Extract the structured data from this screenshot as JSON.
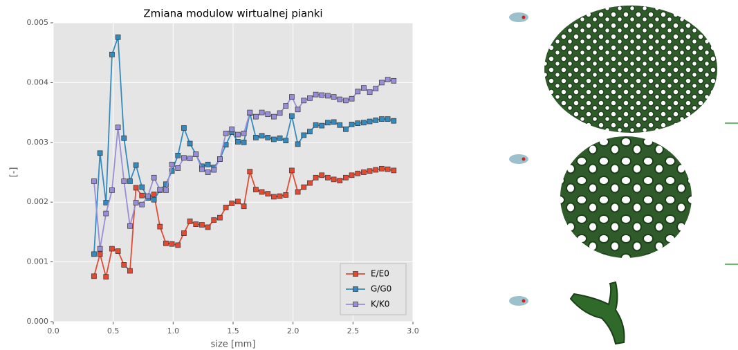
{
  "chart_data": {
    "type": "line",
    "title": "Zmiana modulow wirtualnej pianki",
    "xlabel": "size [mm]",
    "ylabel": "[-]",
    "x": [
      0.34,
      0.39,
      0.44,
      0.49,
      0.54,
      0.59,
      0.64,
      0.69,
      0.74,
      0.79,
      0.84,
      0.89,
      0.94,
      0.99,
      1.04,
      1.09,
      1.14,
      1.19,
      1.24,
      1.29,
      1.34,
      1.39,
      1.44,
      1.49,
      1.54,
      1.59,
      1.64,
      1.69,
      1.74,
      1.79,
      1.84,
      1.89,
      1.94,
      1.99,
      2.04,
      2.09,
      2.14,
      2.19,
      2.24,
      2.29,
      2.34,
      2.39,
      2.44,
      2.49,
      2.54,
      2.59,
      2.64,
      2.69,
      2.74,
      2.79,
      2.84
    ],
    "series": [
      {
        "name": "E/E0",
        "color": "#e24a33",
        "values": [
          0.00076,
          0.00113,
          0.00075,
          0.00122,
          0.00118,
          0.00095,
          0.00085,
          0.00224,
          0.00211,
          0.00207,
          0.00213,
          0.00159,
          0.00131,
          0.0013,
          0.00128,
          0.00148,
          0.00168,
          0.00163,
          0.00162,
          0.00158,
          0.0017,
          0.00174,
          0.00191,
          0.00198,
          0.00201,
          0.00193,
          0.00251,
          0.00221,
          0.00217,
          0.00214,
          0.00209,
          0.0021,
          0.00212,
          0.00253,
          0.00217,
          0.00225,
          0.00232,
          0.00241,
          0.00245,
          0.00241,
          0.00238,
          0.00236,
          0.00241,
          0.00245,
          0.00248,
          0.0025,
          0.00252,
          0.00254,
          0.00256,
          0.00255,
          0.00253
        ]
      },
      {
        "name": "G/G0",
        "color": "#348abd",
        "values": [
          0.00113,
          0.00282,
          0.00199,
          0.00447,
          0.00476,
          0.00307,
          0.00235,
          0.00262,
          0.00225,
          0.00207,
          0.00204,
          0.0022,
          0.0023,
          0.00252,
          0.00278,
          0.00324,
          0.00298,
          0.0028,
          0.0026,
          0.00263,
          0.00258,
          0.00272,
          0.00296,
          0.00317,
          0.00301,
          0.003,
          0.00349,
          0.00308,
          0.00311,
          0.00308,
          0.00305,
          0.00307,
          0.00303,
          0.00344,
          0.00297,
          0.00312,
          0.00318,
          0.00329,
          0.00328,
          0.00333,
          0.00334,
          0.00329,
          0.00322,
          0.0033,
          0.00332,
          0.00333,
          0.00335,
          0.00337,
          0.00339,
          0.00339,
          0.00336
        ]
      },
      {
        "name": "K/K0",
        "color": "#988ed5",
        "values": [
          0.00235,
          0.00122,
          0.00181,
          0.0022,
          0.00325,
          0.00235,
          0.0016,
          0.00199,
          0.00196,
          0.0021,
          0.00241,
          0.00221,
          0.0022,
          0.00263,
          0.00257,
          0.00274,
          0.00273,
          0.0028,
          0.00255,
          0.0025,
          0.00254,
          0.00272,
          0.00315,
          0.00322,
          0.00313,
          0.00315,
          0.0035,
          0.00343,
          0.0035,
          0.00347,
          0.00343,
          0.00349,
          0.00361,
          0.00376,
          0.00355,
          0.0037,
          0.00374,
          0.0038,
          0.00379,
          0.00378,
          0.00376,
          0.00372,
          0.0037,
          0.00373,
          0.00385,
          0.00391,
          0.00384,
          0.0039,
          0.004,
          0.00405,
          0.00403
        ]
      }
    ],
    "xlim": [
      0,
      3.0
    ],
    "xticks": [
      {
        "value": 0,
        "label": "0.0"
      },
      {
        "value": 0.5,
        "label": "0.5"
      },
      {
        "value": 1.0,
        "label": "1.0"
      },
      {
        "value": 1.5,
        "label": "1.5"
      },
      {
        "value": 2.0,
        "label": "2.0"
      },
      {
        "value": 2.5,
        "label": "2.5"
      },
      {
        "value": 3.0,
        "label": "3.0"
      }
    ],
    "ylim": [
      0,
      0.005
    ],
    "yticks": [
      {
        "value": 0,
        "label": "0.000"
      },
      {
        "value": 0.001,
        "label": "0.001"
      },
      {
        "value": 0.002,
        "label": "0.002"
      },
      {
        "value": 0.003,
        "label": "0.003"
      },
      {
        "value": 0.004,
        "label": "0.004"
      },
      {
        "value": 0.005,
        "label": "0.005"
      }
    ],
    "grid": true,
    "legend": "lower right"
  }
}
